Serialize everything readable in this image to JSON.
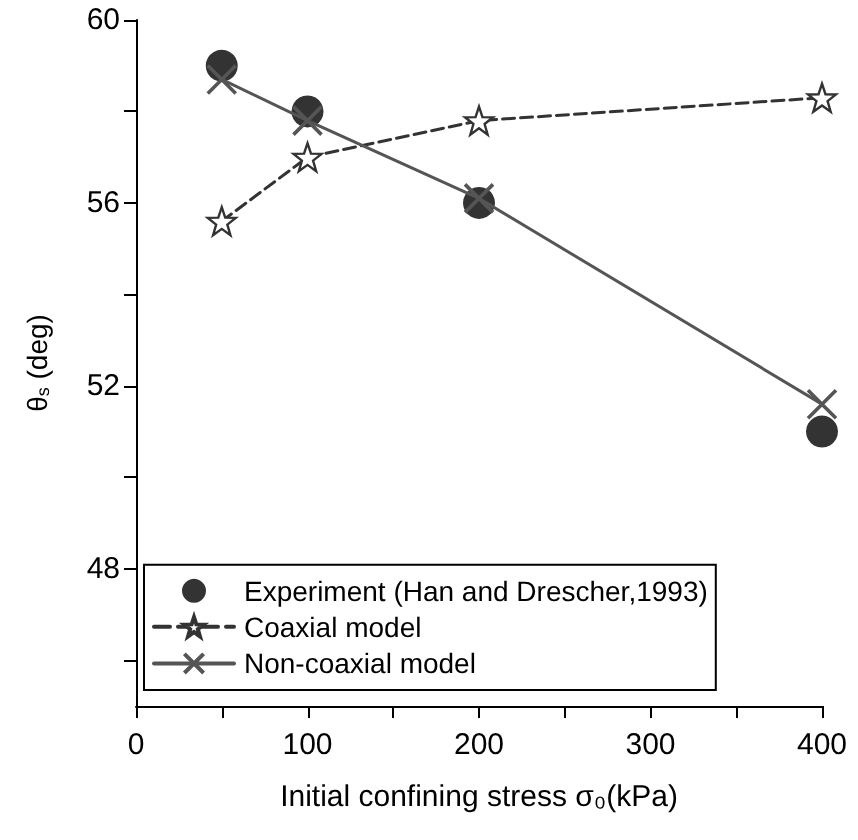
{
  "chart_data": {
    "type": "line",
    "xlabel": "Initial confining stress σ₀(kPa)",
    "ylabel": "θ$_{s}$ (deg)",
    "x": [
      50,
      100,
      200,
      400
    ],
    "series": [
      {
        "name": "Experiment (Han and Drescher,1993)",
        "type": "scatter",
        "color": "#000000",
        "marker": "circle",
        "values": [
          59,
          58,
          56,
          51
        ]
      },
      {
        "name": "Coaxial model",
        "color": "#333333",
        "marker": "star",
        "line_style": "dashed",
        "values": [
          55.6,
          57.0,
          57.8,
          58.3
        ]
      },
      {
        "name": "Non-coaxial model",
        "color": "#555555",
        "marker": "cross",
        "line_style": "solid",
        "values": [
          58.7,
          57.8,
          56.1,
          51.6
        ]
      }
    ],
    "xlim": [
      0,
      400
    ],
    "xticks": [
      0,
      {
        "value": 50,
        "label": null
      },
      100,
      {
        "value": 150,
        "label": null
      },
      200,
      {
        "value": 250,
        "label": null
      },
      300,
      {
        "value": 350,
        "label": null
      },
      400
    ],
    "ylim": [
      45,
      60
    ],
    "yticks": [
      {
        "value": 46,
        "label": null
      },
      48,
      {
        "value": 50,
        "label": null
      },
      52,
      {
        "value": 54,
        "label": null
      },
      56,
      {
        "value": 58,
        "label": null
      },
      60
    ],
    "grid": false,
    "legend": "bottom left"
  }
}
